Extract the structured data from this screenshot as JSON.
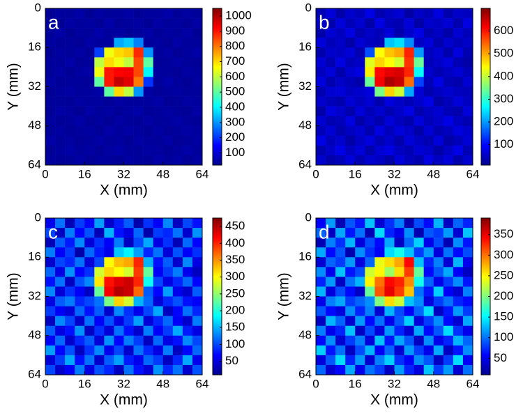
{
  "chart_data": [
    {
      "type": "heatmap",
      "label": "a",
      "x_label": "X (mm)",
      "y_label": "Y (mm)",
      "colormap": "jet",
      "xlim": [
        0,
        64
      ],
      "ylim": [
        64,
        0
      ],
      "xticks": [
        0,
        16,
        32,
        48,
        64
      ],
      "yticks": [
        0,
        16,
        32,
        48,
        64
      ],
      "clim": [
        20,
        1050
      ],
      "cticks": [
        100,
        200,
        300,
        400,
        500,
        600,
        700,
        800,
        900,
        1000
      ],
      "values": [
        [
          45,
          52,
          48,
          60,
          41,
          55,
          47,
          50,
          58,
          44,
          51,
          49,
          62,
          46,
          53,
          48
        ],
        [
          50,
          44,
          57,
          49,
          53,
          46,
          61,
          45,
          50,
          55,
          43,
          58,
          47,
          52,
          45,
          56
        ],
        [
          47,
          59,
          42,
          51,
          48,
          63,
          49,
          54,
          46,
          50,
          60,
          45,
          53,
          48,
          57,
          44
        ],
        [
          55,
          46,
          50,
          44,
          58,
          49,
          52,
          320,
          350,
          280,
          47,
          53,
          45,
          59,
          50,
          48
        ],
        [
          43,
          53,
          47,
          56,
          45,
          210,
          650,
          700,
          720,
          880,
          300,
          49,
          56,
          44,
          51,
          60
        ],
        [
          52,
          48,
          61,
          45,
          50,
          600,
          700,
          650,
          600,
          850,
          500,
          46,
          50,
          57,
          48,
          45
        ],
        [
          48,
          56,
          44,
          53,
          59,
          650,
          900,
          920,
          930,
          850,
          400,
          52,
          48,
          45,
          55,
          50
        ],
        [
          57,
          45,
          50,
          48,
          46,
          500,
          900,
          980,
          950,
          800,
          200,
          48,
          61,
          50,
          44,
          53
        ],
        [
          44,
          51,
          58,
          47,
          52,
          60,
          500,
          700,
          600,
          300,
          55,
          45,
          50,
          54,
          47,
          49
        ],
        [
          50,
          47,
          45,
          55,
          49,
          53,
          46,
          58,
          50,
          47,
          52,
          60,
          44,
          48,
          56,
          51
        ],
        [
          46,
          58,
          52,
          44,
          57,
          48,
          55,
          45,
          53,
          61,
          46,
          50,
          55,
          47,
          45,
          58
        ],
        [
          53,
          45,
          49,
          60,
          46,
          51,
          44,
          56,
          48,
          45,
          57,
          47,
          52,
          60,
          50,
          46
        ],
        [
          48,
          55,
          46,
          50,
          54,
          45,
          59,
          49,
          57,
          52,
          44,
          55,
          46,
          49,
          58,
          52
        ],
        [
          59,
          47,
          53,
          45,
          50,
          58,
          47,
          52,
          44,
          56,
          50,
          48,
          57,
          45,
          47,
          55
        ],
        [
          45,
          52,
          60,
          48,
          55,
          46,
          53,
          61,
          49,
          47,
          55,
          52,
          44,
          51,
          60,
          47
        ],
        [
          51,
          46,
          47,
          56,
          44,
          52,
          50,
          45,
          55,
          49,
          46,
          59,
          50,
          56,
          45,
          53
        ]
      ]
    },
    {
      "type": "heatmap",
      "label": "b",
      "x_label": "X (mm)",
      "y_label": "Y (mm)",
      "colormap": "jet",
      "xlim": [
        0,
        64
      ],
      "ylim": [
        64,
        0
      ],
      "xticks": [
        0,
        16,
        32,
        48,
        64
      ],
      "yticks": [
        0,
        16,
        32,
        48,
        64
      ],
      "clim": [
        10,
        700
      ],
      "cticks": [
        100,
        200,
        300,
        400,
        500,
        600
      ],
      "values": [
        [
          45,
          70,
          38,
          62,
          50,
          80,
          42,
          55,
          66,
          35,
          58,
          48,
          74,
          40,
          60,
          52
        ],
        [
          60,
          40,
          72,
          48,
          65,
          38,
          78,
          50,
          44,
          70,
          36,
          62,
          55,
          68,
          42,
          75
        ],
        [
          38,
          66,
          52,
          75,
          44,
          58,
          48,
          70,
          40,
          62,
          80,
          45,
          57,
          38,
          66,
          50
        ],
        [
          72,
          48,
          60,
          36,
          68,
          52,
          46,
          230,
          250,
          190,
          55,
          70,
          42,
          64,
          48,
          58
        ],
        [
          40,
          62,
          55,
          70,
          42,
          150,
          440,
          480,
          500,
          590,
          200,
          52,
          66,
          40,
          74,
          45
        ],
        [
          68,
          44,
          76,
          50,
          58,
          420,
          470,
          440,
          410,
          580,
          340,
          48,
          60,
          72,
          46,
          38
        ],
        [
          52,
          70,
          40,
          64,
          75,
          450,
          610,
          630,
          640,
          590,
          270,
          62,
          44,
          55,
          68,
          50
        ],
        [
          74,
          42,
          58,
          48,
          38,
          340,
          620,
          670,
          650,
          540,
          140,
          50,
          78,
          46,
          40,
          66
        ],
        [
          44,
          66,
          70,
          55,
          62,
          72,
          350,
          470,
          410,
          210,
          68,
          42,
          55,
          64,
          52,
          48
        ],
        [
          60,
          48,
          42,
          68,
          52,
          66,
          40,
          74,
          58,
          46,
          62,
          80,
          38,
          50,
          70,
          56
        ],
        [
          36,
          74,
          62,
          40,
          70,
          48,
          64,
          45,
          60,
          78,
          42,
          56,
          66,
          48,
          40,
          72
        ],
        [
          66,
          44,
          50,
          76,
          38,
          58,
          42,
          70,
          52,
          40,
          72,
          48,
          60,
          80,
          55,
          44
        ],
        [
          48,
          68,
          40,
          56,
          66,
          42,
          76,
          50,
          72,
          60,
          38,
          68,
          44,
          52,
          74,
          62
        ],
        [
          78,
          50,
          64,
          38,
          58,
          74,
          46,
          62,
          40,
          70,
          56,
          44,
          72,
          38,
          50,
          68
        ],
        [
          42,
          60,
          80,
          52,
          70,
          40,
          66,
          78,
          54,
          46,
          68,
          60,
          38,
          58,
          80,
          46
        ],
        [
          62,
          40,
          48,
          72,
          44,
          64,
          56,
          38,
          70,
          52,
          42,
          76,
          56,
          70,
          40,
          64
        ]
      ]
    },
    {
      "type": "heatmap",
      "label": "c",
      "x_label": "X (mm)",
      "y_label": "Y (mm)",
      "colormap": "jet",
      "xlim": [
        0,
        64
      ],
      "ylim": [
        64,
        0
      ],
      "xticks": [
        0,
        16,
        32,
        48,
        64
      ],
      "yticks": [
        0,
        16,
        32,
        48,
        64
      ],
      "clim": [
        10,
        475
      ],
      "cticks": [
        50,
        100,
        150,
        200,
        250,
        300,
        350,
        400,
        450
      ],
      "values": [
        [
          60,
          120,
          35,
          95,
          70,
          140,
          45,
          80,
          110,
          30,
          90,
          65,
          130,
          40,
          100,
          75
        ],
        [
          100,
          40,
          125,
          70,
          105,
          35,
          150,
          75,
          55,
          115,
          30,
          95,
          85,
          120,
          45,
          135
        ],
        [
          35,
          110,
          80,
          130,
          50,
          90,
          65,
          125,
          40,
          100,
          145,
          55,
          90,
          35,
          115,
          70
        ],
        [
          125,
          65,
          95,
          30,
          115,
          80,
          60,
          160,
          180,
          140,
          85,
          120,
          50,
          105,
          65,
          90
        ],
        [
          45,
          100,
          85,
          120,
          50,
          100,
          300,
          330,
          340,
          400,
          150,
          75,
          110,
          45,
          130,
          55
        ],
        [
          115,
          55,
          135,
          70,
          90,
          280,
          320,
          300,
          280,
          390,
          230,
          65,
          95,
          125,
          60,
          40
        ],
        [
          75,
          120,
          40,
          105,
          130,
          310,
          410,
          430,
          440,
          400,
          190,
          100,
          55,
          85,
          115,
          70
        ],
        [
          130,
          50,
          90,
          65,
          40,
          230,
          420,
          450,
          440,
          370,
          110,
          70,
          140,
          60,
          45,
          110
        ],
        [
          55,
          110,
          125,
          85,
          100,
          120,
          240,
          320,
          280,
          150,
          115,
          50,
          85,
          105,
          75,
          65
        ],
        [
          95,
          65,
          50,
          115,
          75,
          110,
          45,
          130,
          90,
          60,
          100,
          145,
          40,
          70,
          120,
          85
        ],
        [
          40,
          130,
          100,
          45,
          120,
          65,
          105,
          55,
          95,
          140,
          50,
          85,
          115,
          65,
          45,
          125
        ],
        [
          110,
          55,
          75,
          135,
          40,
          90,
          50,
          120,
          75,
          45,
          125,
          65,
          95,
          145,
          80,
          55
        ],
        [
          65,
          115,
          45,
          85,
          110,
          50,
          135,
          70,
          125,
          95,
          40,
          115,
          55,
          75,
          130,
          100
        ],
        [
          140,
          70,
          105,
          40,
          90,
          130,
          60,
          100,
          45,
          120,
          85,
          55,
          125,
          40,
          70,
          115
        ],
        [
          50,
          95,
          145,
          75,
          120,
          45,
          110,
          140,
          80,
          60,
          115,
          95,
          40,
          85,
          145,
          60
        ],
        [
          100,
          45,
          65,
          125,
          55,
          105,
          85,
          40,
          120,
          75,
          50,
          135,
          85,
          120,
          45,
          105
        ]
      ]
    },
    {
      "type": "heatmap",
      "label": "d",
      "x_label": "X (mm)",
      "y_label": "Y (mm)",
      "colormap": "jet",
      "xlim": [
        0,
        64
      ],
      "ylim": [
        64,
        0
      ],
      "xticks": [
        0,
        16,
        32,
        48,
        64
      ],
      "yticks": [
        0,
        16,
        32,
        48,
        64
      ],
      "clim": [
        10,
        390
      ],
      "cticks": [
        50,
        100,
        150,
        200,
        250,
        300,
        350
      ],
      "values": [
        [
          55,
          115,
          30,
          90,
          65,
          130,
          40,
          75,
          105,
          28,
          85,
          60,
          125,
          35,
          95,
          70
        ],
        [
          95,
          35,
          120,
          65,
          100,
          30,
          140,
          70,
          50,
          110,
          28,
          90,
          80,
          115,
          40,
          130
        ],
        [
          30,
          105,
          75,
          125,
          45,
          85,
          60,
          120,
          35,
          95,
          135,
          50,
          85,
          30,
          110,
          65
        ],
        [
          120,
          60,
          90,
          28,
          110,
          75,
          55,
          140,
          160,
          130,
          80,
          115,
          45,
          100,
          60,
          85
        ],
        [
          40,
          95,
          80,
          115,
          45,
          95,
          240,
          260,
          280,
          340,
          130,
          70,
          105,
          40,
          125,
          50
        ],
        [
          110,
          50,
          130,
          65,
          85,
          230,
          250,
          210,
          260,
          320,
          190,
          60,
          90,
          120,
          55,
          35
        ],
        [
          70,
          115,
          35,
          100,
          125,
          250,
          300,
          340,
          330,
          290,
          160,
          95,
          50,
          80,
          110,
          65
        ],
        [
          125,
          45,
          85,
          60,
          35,
          190,
          310,
          350,
          320,
          270,
          100,
          65,
          135,
          55,
          40,
          105
        ],
        [
          50,
          105,
          120,
          80,
          95,
          110,
          200,
          260,
          230,
          130,
          110,
          45,
          80,
          100,
          70,
          60
        ],
        [
          90,
          60,
          45,
          110,
          70,
          105,
          40,
          125,
          85,
          55,
          95,
          140,
          35,
          65,
          115,
          80
        ],
        [
          35,
          125,
          95,
          40,
          115,
          60,
          100,
          50,
          90,
          135,
          45,
          80,
          110,
          60,
          40,
          120
        ],
        [
          105,
          50,
          70,
          130,
          35,
          85,
          45,
          115,
          70,
          40,
          120,
          60,
          90,
          140,
          75,
          50
        ],
        [
          60,
          110,
          40,
          80,
          105,
          45,
          130,
          65,
          120,
          90,
          35,
          110,
          50,
          70,
          125,
          95
        ],
        [
          135,
          65,
          100,
          35,
          85,
          125,
          55,
          95,
          40,
          115,
          80,
          50,
          120,
          35,
          65,
          110
        ],
        [
          45,
          90,
          140,
          70,
          115,
          40,
          105,
          135,
          75,
          55,
          110,
          90,
          35,
          80,
          140,
          55
        ],
        [
          95,
          40,
          60,
          120,
          50,
          100,
          80,
          35,
          115,
          70,
          45,
          130,
          80,
          115,
          40,
          100
        ]
      ]
    }
  ]
}
